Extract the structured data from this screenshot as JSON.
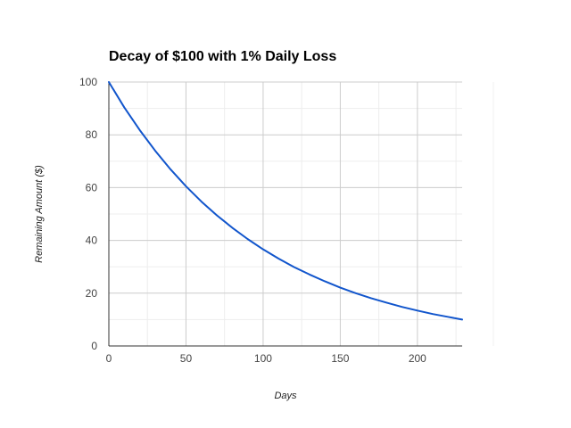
{
  "chart_data": {
    "type": "line",
    "title": "Decay of $100 with 1% Daily Loss",
    "xlabel": "Days",
    "ylabel": "Remaining Amount ($)",
    "xlim": [
      0,
      229
    ],
    "ylim": [
      0,
      100
    ],
    "x_ticks": [
      "0",
      "50",
      "100",
      "150",
      "200"
    ],
    "y_ticks": [
      "0",
      "20",
      "40",
      "60",
      "80",
      "100"
    ],
    "grid": true,
    "legend": "none",
    "series": [
      {
        "color": "#1155cc",
        "x": [
          0,
          10,
          20,
          30,
          40,
          50,
          60,
          70,
          80,
          90,
          100,
          110,
          120,
          130,
          140,
          150,
          160,
          170,
          180,
          190,
          200,
          210,
          220,
          229
        ],
        "y": [
          100,
          90.4,
          81.8,
          74.0,
          66.9,
          60.5,
          54.7,
          49.5,
          44.8,
          40.5,
          36.6,
          33.1,
          29.9,
          27.1,
          24.5,
          22.1,
          20.0,
          18.1,
          16.4,
          14.8,
          13.4,
          12.1,
          11.0,
          10.0
        ]
      }
    ]
  }
}
